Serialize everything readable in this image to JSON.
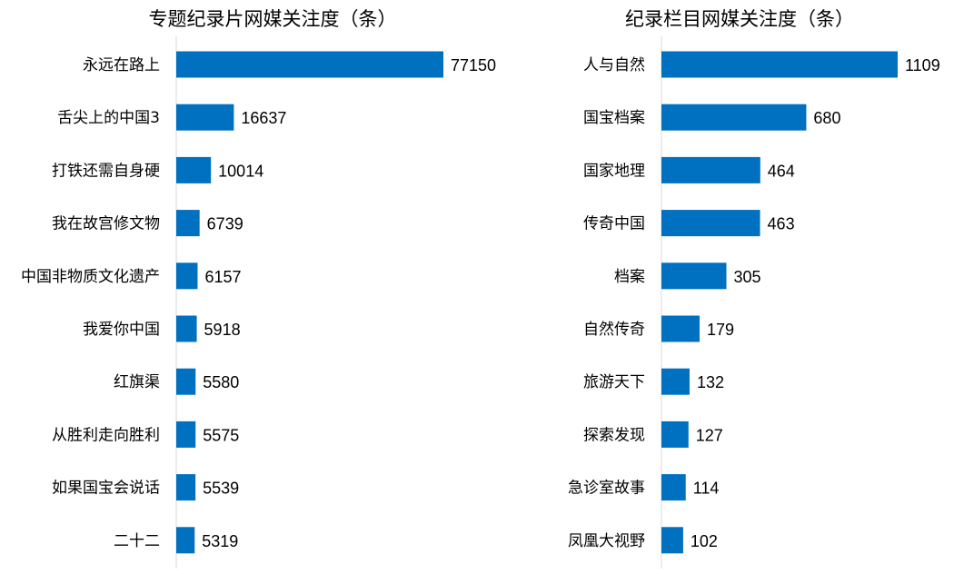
{
  "chart_data": [
    {
      "type": "bar",
      "orientation": "horizontal",
      "title": "专题纪录片网媒关注度（条）",
      "categories": [
        "永远在路上",
        "舌尖上的中国3",
        "打铁还需自身硬",
        "我在故宫修文物",
        "中国非物质文化遗产",
        "我爱你中国",
        "红旗渠",
        "从胜利走向胜利",
        "如果国宝会说话",
        "二十二"
      ],
      "values": [
        77150,
        16637,
        10014,
        6739,
        6157,
        5918,
        5580,
        5575,
        5539,
        5319
      ],
      "value_labels": [
        "77150",
        "16637",
        "10014",
        "6739",
        "6157",
        "5918",
        "5580",
        "5575",
        "5539",
        "5319"
      ],
      "xlim": [
        0,
        77150
      ],
      "color": "#0070c0",
      "grid": false,
      "legend": "none"
    },
    {
      "type": "bar",
      "orientation": "horizontal",
      "title": "纪录栏目网媒关注度（条）",
      "categories": [
        "人与自然",
        "国宝档案",
        "国家地理",
        "传奇中国",
        "档案",
        "自然传奇",
        "旅游天下",
        "探索发现",
        "急诊室故事",
        "凤凰大视野"
      ],
      "values": [
        1109,
        680,
        464,
        463,
        305,
        179,
        132,
        127,
        114,
        102
      ],
      "value_labels": [
        "1109",
        "680",
        "464",
        "463",
        "305",
        "179",
        "132",
        "127",
        "114",
        "102"
      ],
      "xlim": [
        0,
        1109
      ],
      "color": "#0070c0",
      "grid": false,
      "legend": "none"
    }
  ]
}
